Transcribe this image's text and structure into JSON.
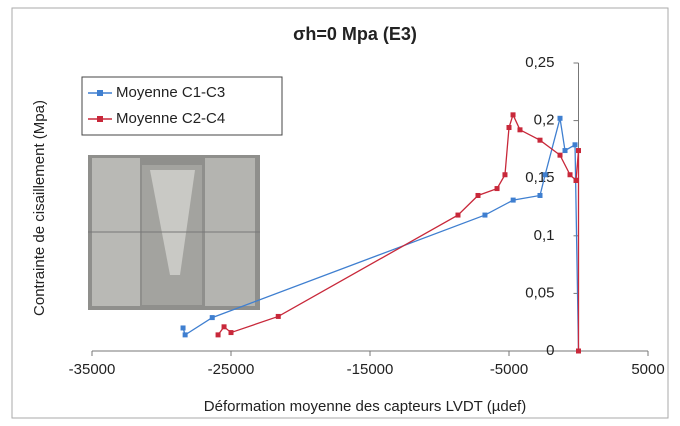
{
  "chart_data": {
    "type": "line",
    "title": "σh=0 Mpa (E3)",
    "x_label": "Déformation moyenne des capteurs LVDT (µdef)",
    "y_label": "Contrainte de cisaillement (Mpa)",
    "xlim": [
      -35000,
      5000
    ],
    "xticks": [
      -35000,
      -25000,
      -15000,
      -5000,
      5000
    ],
    "ylim": [
      0,
      0.25
    ],
    "yticks": [
      0,
      {
        "value": 0.05,
        "label": "0,05"
      },
      {
        "value": 0.1,
        "label": "0,1"
      },
      {
        "value": 0.15,
        "label": "0,15"
      },
      {
        "value": 0.2,
        "label": "0,2"
      },
      {
        "value": 0.25,
        "label": "0,25"
      }
    ],
    "legend": "top-left",
    "series": [
      {
        "name": "Moyenne C1-C3",
        "color": "#3f7fd0",
        "x": [
          -28450,
          -28300,
          -26350,
          -6730,
          -4700,
          -2770,
          -2400,
          -1330,
          -970,
          -250,
          0
        ],
        "values": [
          0.02,
          0.014,
          0.029,
          0.118,
          0.131,
          0.135,
          0.153,
          0.202,
          0.174,
          0.179,
          0
        ]
      },
      {
        "name": "Moyenne C2-C4",
        "color": "#c8283a",
        "x": [
          -25930,
          -25500,
          -25000,
          -21600,
          -8670,
          -7230,
          -5860,
          -5290,
          -5000,
          -4710,
          -4210,
          -2770,
          -1330,
          -610,
          -180,
          0,
          0
        ],
        "values": [
          0.014,
          0.021,
          0.016,
          0.03,
          0.118,
          0.135,
          0.141,
          0.153,
          0.194,
          0.205,
          0.192,
          0.183,
          0.17,
          0.153,
          0.148,
          0.174,
          0
        ]
      }
    ]
  }
}
